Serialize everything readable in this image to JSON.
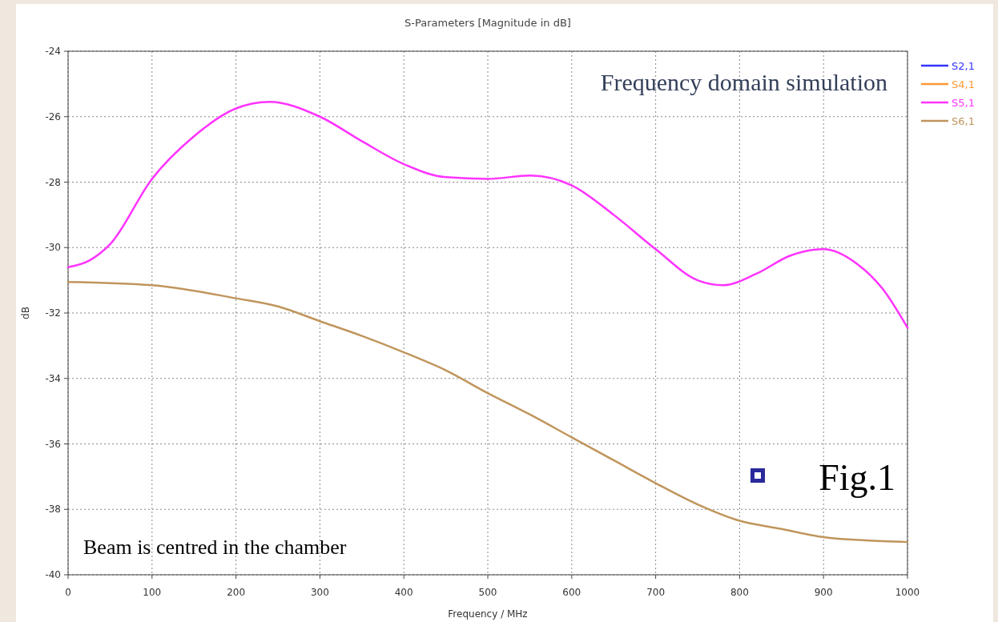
{
  "chart_data": {
    "type": "line",
    "title": "S-Parameters [Magnitude in dB]",
    "xlabel": "Frequency / MHz",
    "ylabel": "dB",
    "annotations": [
      "Frequency domain simulation",
      "Fig.1",
      "Beam is centred in the chamber"
    ],
    "xlim": [
      0,
      1000
    ],
    "xticks": [
      0,
      100,
      200,
      300,
      400,
      500,
      600,
      700,
      800,
      900,
      1000
    ],
    "ylim": [
      -40,
      -24
    ],
    "yticks": [
      -40,
      -38,
      -36,
      -34,
      -32,
      -30,
      -28,
      -26,
      -24
    ],
    "grid": true,
    "legend": "top right",
    "line_style": "solid",
    "marker": "none",
    "series": [
      {
        "name": "S2,1",
        "color": "#3333ff"
      },
      {
        "name": "S4,1",
        "color": "#ff9933"
      },
      {
        "name": "S5,1",
        "color": "#ff33ff",
        "x": [
          0,
          25,
          50,
          100,
          150,
          200,
          240,
          300,
          350,
          400,
          450,
          500,
          550,
          600,
          650,
          700,
          750,
          780,
          820,
          860,
          900,
          940,
          970,
          1000
        ],
        "values": [
          -30.6,
          -30.4,
          -29.9,
          -27.9,
          -26.6,
          -25.75,
          -25.55,
          -26.0,
          -26.75,
          -27.45,
          -27.85,
          -27.9,
          -27.8,
          -28.1,
          -29.0,
          -30.05,
          -31.0,
          -31.15,
          -30.8,
          -30.25,
          -30.05,
          -30.5,
          -31.25,
          -32.45
        ]
      },
      {
        "name": "S6,1",
        "color": "#c0955c",
        "x": [
          0,
          100,
          200,
          250,
          300,
          350,
          400,
          450,
          500,
          550,
          600,
          650,
          700,
          750,
          800,
          850,
          900,
          950,
          1000
        ],
        "values": [
          -31.05,
          -31.15,
          -31.55,
          -31.8,
          -32.25,
          -32.7,
          -33.2,
          -33.75,
          -34.45,
          -35.1,
          -35.8,
          -36.5,
          -37.2,
          -37.85,
          -38.35,
          -38.6,
          -38.85,
          -38.95,
          -39.0
        ]
      }
    ]
  }
}
